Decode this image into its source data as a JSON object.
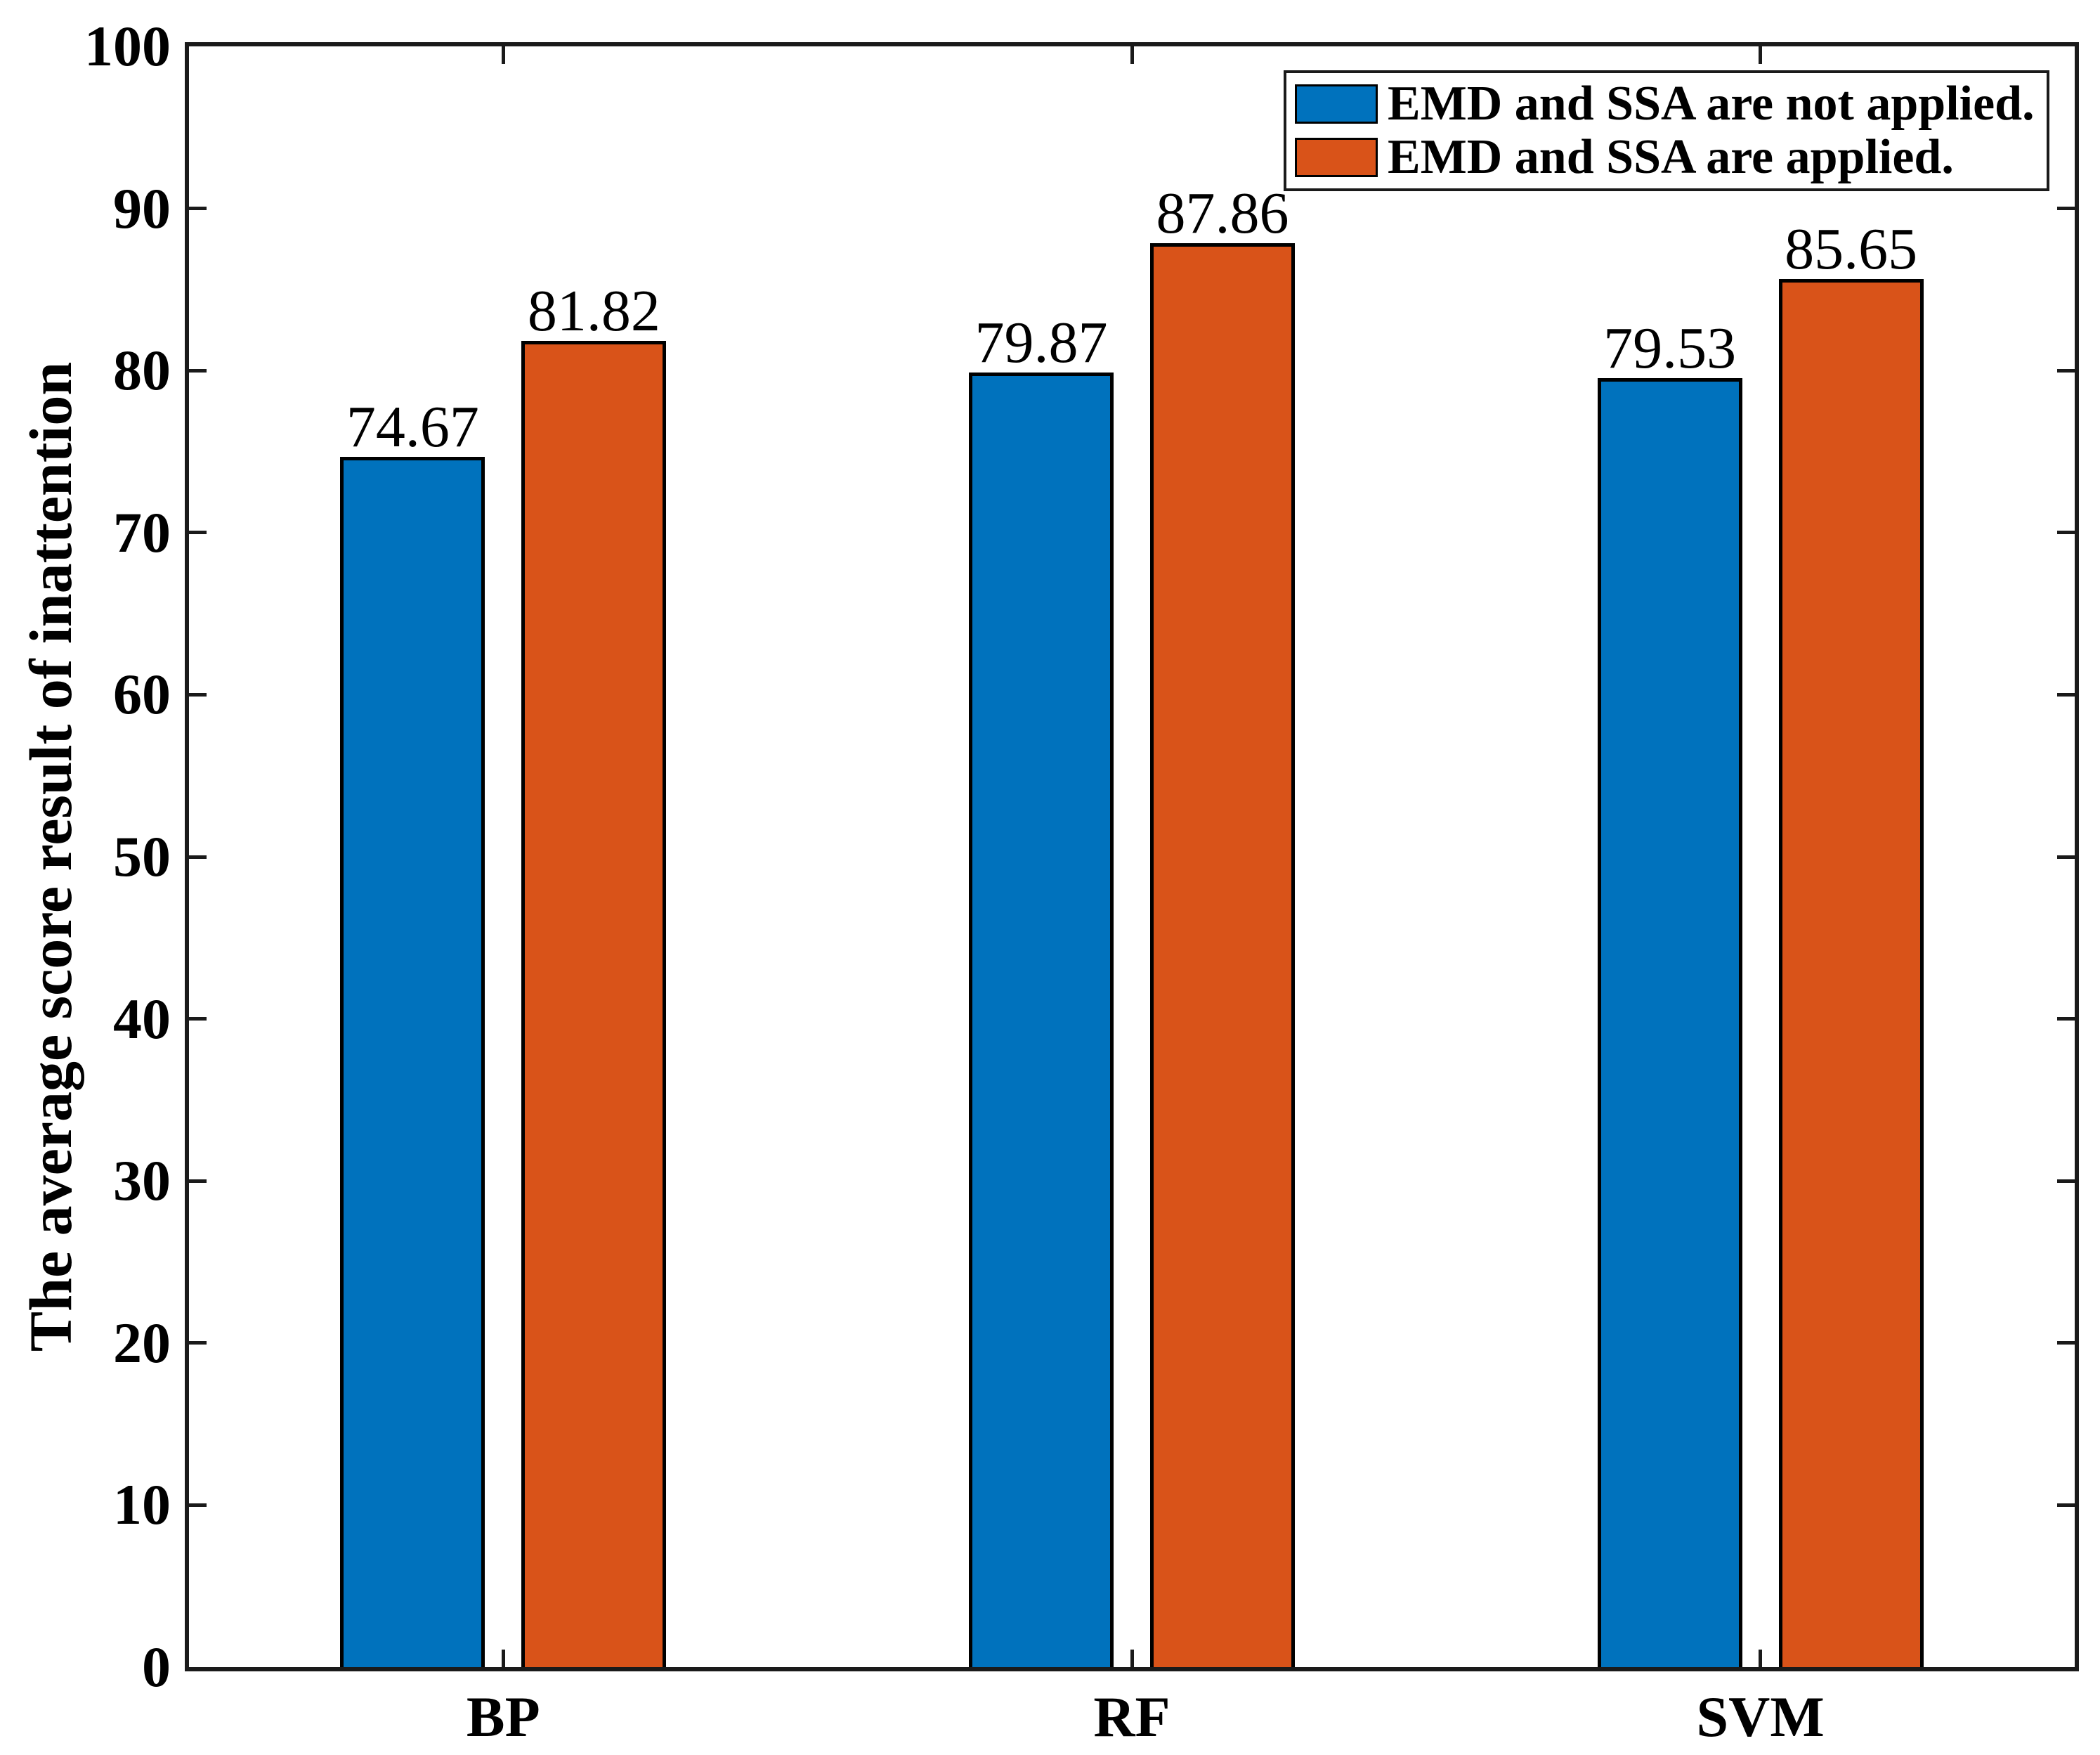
{
  "chart_data": {
    "type": "bar",
    "title": "",
    "xlabel": "",
    "ylabel": "The average score result of inattention",
    "categories": [
      "BP",
      "RF",
      "SVM"
    ],
    "series": [
      {
        "name": "EMD and SSA are not applied.",
        "color": "#0072BD",
        "values": [
          74.67,
          79.87,
          79.53
        ],
        "value_labels": [
          "74.67",
          "79.87",
          "79.53"
        ]
      },
      {
        "name": "EMD and SSA are applied.",
        "color": "#D95319",
        "values": [
          81.82,
          87.86,
          85.65
        ],
        "value_labels": [
          "81.82",
          "87.86",
          "85.65"
        ]
      }
    ],
    "ylim": [
      0,
      100
    ],
    "yticks": [
      0,
      10,
      20,
      30,
      40,
      50,
      60,
      70,
      80,
      90,
      100
    ],
    "grid": false,
    "legend_position": "top-right",
    "colors": {
      "axis": "#1a1a1a",
      "bar_edge": "#000000",
      "background": "#ffffff",
      "text": "#000000"
    }
  }
}
